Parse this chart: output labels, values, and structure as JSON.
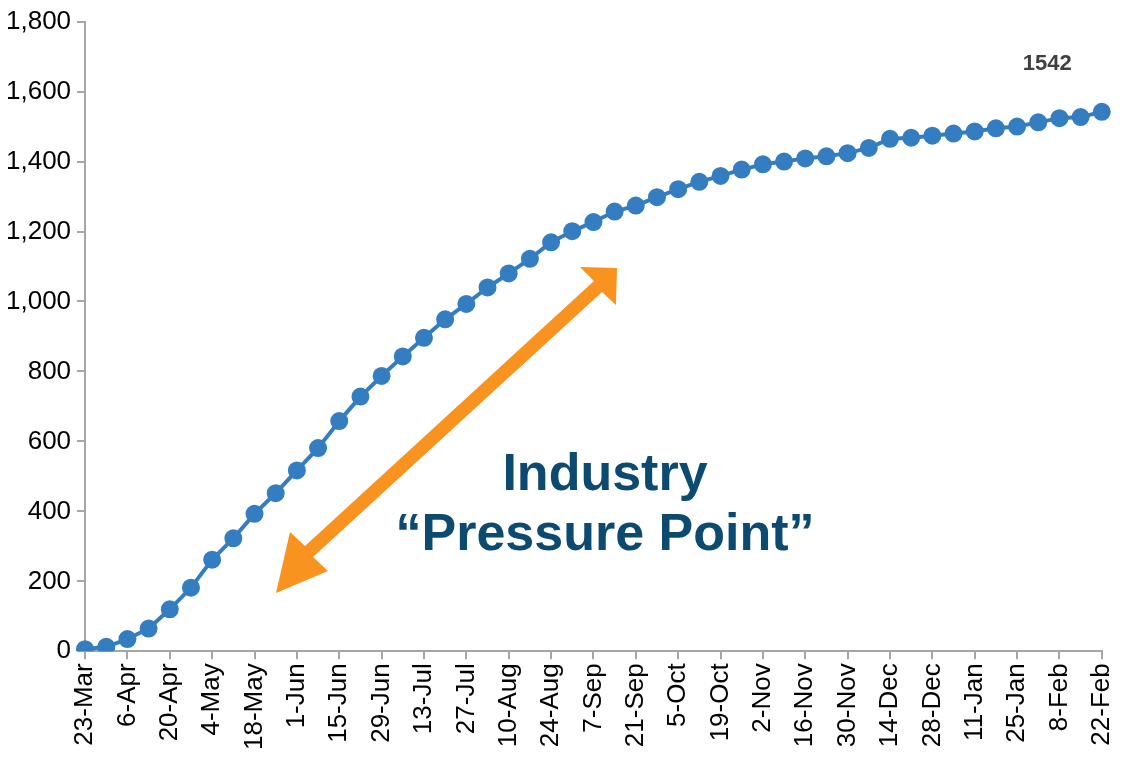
{
  "chart_data": {
    "type": "line",
    "categories": [
      "23-Mar",
      null,
      "6-Apr",
      null,
      "20-Apr",
      null,
      "4-May",
      null,
      "18-May",
      null,
      "1-Jun",
      null,
      "15-Jun",
      null,
      "29-Jun",
      null,
      "13-Jul",
      null,
      "27-Jul",
      null,
      "10-Aug",
      null,
      "24-Aug",
      null,
      "7-Sep",
      null,
      "21-Sep",
      null,
      "5-Oct",
      null,
      "19-Oct",
      null,
      "2-Nov",
      null,
      "16-Nov",
      null,
      "30-Nov",
      null,
      "14-Dec",
      null,
      "28-Dec",
      null,
      "11-Jan",
      null,
      "25-Jan",
      null,
      "8-Feb",
      null,
      "22-Feb"
    ],
    "series": [
      {
        "color": "#337dc0",
        "values": [
          6,
          13,
          35,
          65,
          120,
          182,
          262,
          323,
          393,
          452,
          517,
          581,
          658,
          728,
          787,
          843,
          896,
          949,
          993,
          1040,
          1080,
          1122,
          1169,
          1201,
          1227,
          1257,
          1274,
          1298,
          1321,
          1342,
          1359,
          1377,
          1392,
          1400,
          1409,
          1415,
          1424,
          1439,
          1465,
          1468,
          1474,
          1480,
          1486,
          1495,
          1500,
          1512,
          1524,
          1527,
          1542
        ],
        "value_labels": [
          null,
          null,
          null,
          null,
          null,
          null,
          null,
          null,
          null,
          null,
          null,
          null,
          null,
          null,
          null,
          null,
          null,
          null,
          null,
          null,
          null,
          null,
          null,
          null,
          null,
          null,
          null,
          null,
          null,
          null,
          null,
          null,
          null,
          null,
          null,
          null,
          null,
          null,
          null,
          null,
          null,
          null,
          null,
          null,
          null,
          null,
          null,
          null,
          "1542"
        ]
      }
    ],
    "ylim": [
      0,
      1800
    ],
    "yticks": [
      0,
      200,
      400,
      600,
      800,
      {
        "value": 1000,
        "label": "1,000"
      },
      {
        "value": 1200,
        "label": "1,200"
      },
      {
        "value": 1400,
        "label": "1,400"
      },
      {
        "value": 1600,
        "label": "1,600"
      },
      {
        "value": 1800,
        "label": "1,800"
      }
    ],
    "grid": false,
    "legend": false,
    "marker": "circle",
    "line_style": "solid",
    "annotations": [
      "Industry “Pressure Point”"
    ]
  }
}
